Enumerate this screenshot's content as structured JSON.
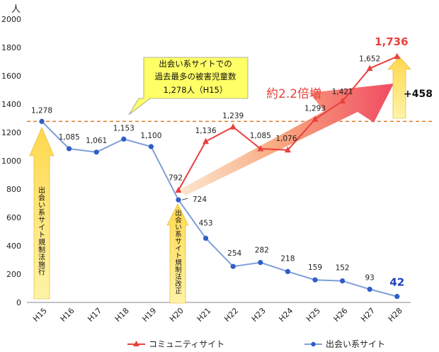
{
  "chart_data": {
    "type": "line",
    "unit_label": "人",
    "categories": [
      "H15",
      "H16",
      "H17",
      "H18",
      "H19",
      "H20",
      "H21",
      "H22",
      "H23",
      "H24",
      "H25",
      "H26",
      "H27",
      "H28"
    ],
    "ylim": [
      0,
      2000
    ],
    "yticks": [
      0,
      200,
      400,
      600,
      800,
      1000,
      1200,
      1400,
      1600,
      1800,
      2000
    ],
    "grid": false,
    "series": [
      {
        "name": "コミュニティサイト",
        "color": "#e8413e",
        "marker": "triangle",
        "x": [
          "H20",
          "H21",
          "H22",
          "H23",
          "H24",
          "H25",
          "H26",
          "H27",
          "H28"
        ],
        "values": [
          792,
          1136,
          1239,
          1085,
          1076,
          1293,
          1421,
          1652,
          1736
        ],
        "labels": [
          "792",
          "1,136",
          "1,239",
          "1,085",
          "1,076",
          "1,293",
          "1,421",
          "1,652",
          "1,736"
        ]
      },
      {
        "name": "出会い系サイト",
        "color": "#7f9fd9",
        "marker_color": "#2f5ec6",
        "marker": "circle",
        "x": [
          "H15",
          "H16",
          "H17",
          "H18",
          "H19",
          "H20",
          "H21",
          "H22",
          "H23",
          "H24",
          "H25",
          "H26",
          "H27",
          "H28"
        ],
        "values": [
          1278,
          1085,
          1061,
          1153,
          1100,
          724,
          453,
          254,
          282,
          218,
          159,
          152,
          93,
          42
        ],
        "labels": [
          "1,278",
          "1,085",
          "1,061",
          "1,153",
          "1,100",
          "724",
          "453",
          "254",
          "282",
          "218",
          "159",
          "152",
          "93",
          "42"
        ]
      }
    ],
    "reference_line": {
      "value": 1278,
      "color": "#e07b28"
    },
    "annotations": {
      "record_callout": [
        "出会い系サイトでの",
        "過去最多の被害児童数",
        "1,278人（H15）"
      ],
      "multiplier": "約2.2倍増",
      "increase": "+458",
      "law_enforced": "出会い系サイト規制法施行",
      "law_revised": "出会い系サイト規制法改正"
    },
    "colors": {
      "callout_fill": "#ffff66",
      "arrow_yellow": "#ffe066",
      "multiplier_text": "#e8413e",
      "last_value_blue": "#1f3fbf"
    }
  }
}
